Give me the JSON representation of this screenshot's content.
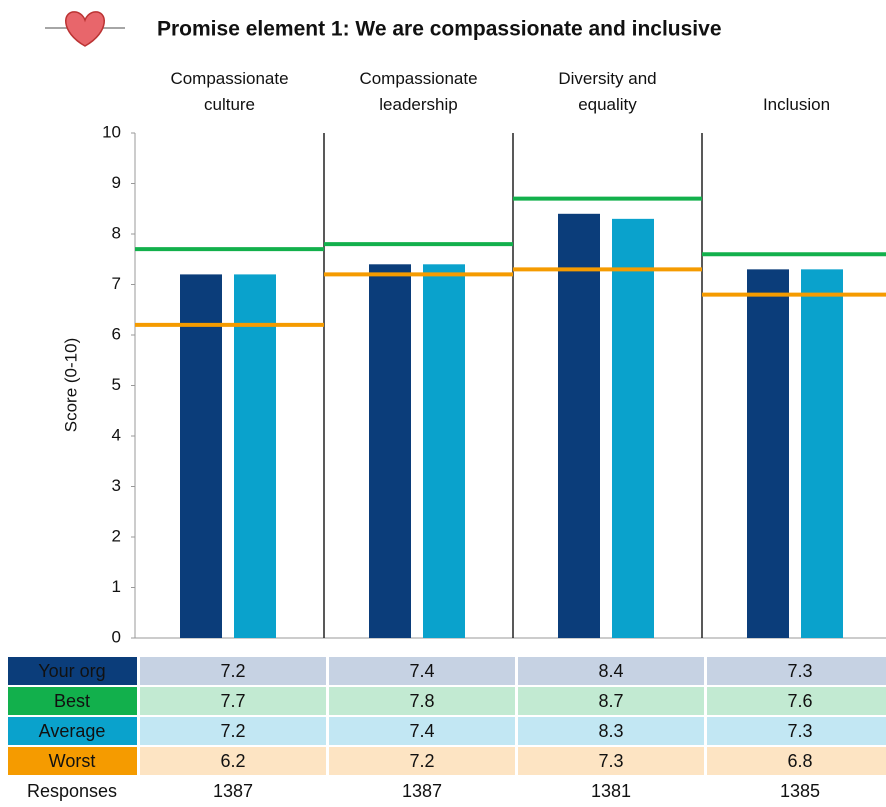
{
  "chart_data": {
    "type": "bar",
    "title": "Promise element 1: We are compassionate and inclusive",
    "y_label": "Score (0-10)",
    "categories": [
      "Compassionate culture",
      "Compassionate leadership",
      "Diversity and equality",
      "Inclusion"
    ],
    "ylim": [
      0,
      10
    ],
    "yticks": [
      0,
      1,
      2,
      3,
      4,
      5,
      6,
      7,
      8,
      9,
      10
    ],
    "series": [
      {
        "name": "Your org",
        "mark": "bar",
        "color": "#0b3d7a",
        "cell_color": "#c6d2e3",
        "values": [
          7.2,
          7.4,
          8.4,
          7.3
        ]
      },
      {
        "name": "Best",
        "mark": "line",
        "color": "#12b04c",
        "cell_color": "#c2ead2",
        "values": [
          7.7,
          7.8,
          8.7,
          7.6
        ]
      },
      {
        "name": "Average",
        "mark": "bar",
        "color": "#0aa2cc",
        "cell_color": "#c2e7f3",
        "values": [
          7.2,
          7.4,
          8.3,
          7.3
        ]
      },
      {
        "name": "Worst",
        "mark": "line",
        "color": "#f59b00",
        "cell_color": "#fde4c3",
        "values": [
          6.2,
          7.2,
          7.3,
          6.8
        ]
      }
    ],
    "responses": {
      "name": "Responses",
      "color": "#1f35a8",
      "values": [
        1387,
        1387,
        1381,
        1385
      ]
    }
  }
}
